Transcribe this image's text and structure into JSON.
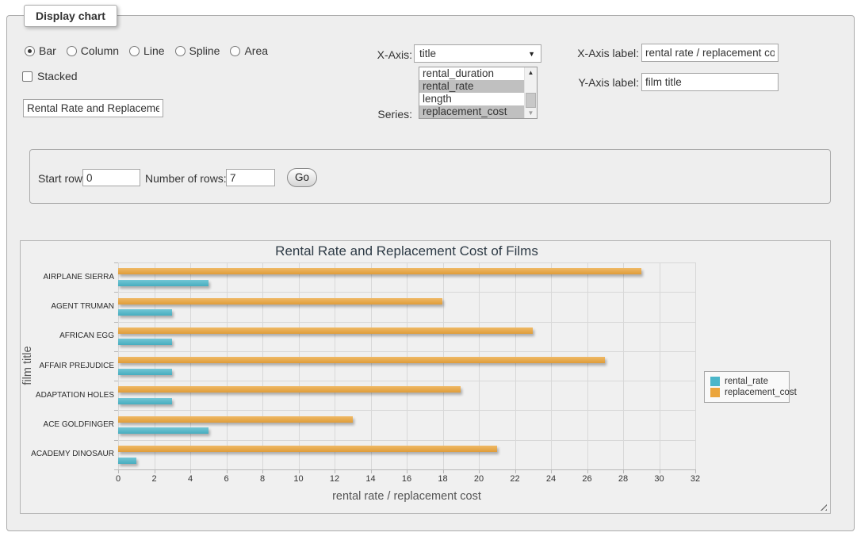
{
  "panel_title": "Display chart",
  "controls": {
    "chart_types": [
      "Bar",
      "Column",
      "Line",
      "Spline",
      "Area"
    ],
    "chart_type_selected": "Bar",
    "stacked_label": "Stacked",
    "stacked_checked": false,
    "chart_title_value": "Rental Rate and Replacement Cost of Films",
    "x_axis_label": "X-Axis:",
    "x_axis_selected": "title",
    "series_label": "Series:",
    "series_options": [
      {
        "label": "rental_duration",
        "selected": false
      },
      {
        "label": "rental_rate",
        "selected": true
      },
      {
        "label": "length",
        "selected": false
      },
      {
        "label": "replacement_cost",
        "selected": true
      }
    ],
    "x_axis_label_label": "X-Axis label:",
    "x_axis_label_value": "rental rate / replacement cost",
    "y_axis_label_label": "Y-Axis label:",
    "y_axis_label_value": "film title"
  },
  "row_form": {
    "start_row_label": "Start row:",
    "start_row_value": "0",
    "number_of_rows_label": "Number of rows:",
    "number_of_rows_value": "7",
    "go_button_label": "Go"
  },
  "icons": {
    "dropdown_arrow": "▼",
    "scroll_up_arrow": "▲",
    "scroll_down_arrow": "▼"
  },
  "colors": {
    "rental_rate": "#4bb6c9",
    "replacement_cost": "#eba53c",
    "selected_option_bg": "#c0c0c0"
  },
  "chart_data": {
    "type": "bar",
    "title": "Rental Rate and Replacement Cost of Films",
    "xlabel": "rental rate / replacement cost",
    "ylabel": "film title",
    "categories": [
      "AIRPLANE SIERRA",
      "AGENT TRUMAN",
      "AFRICAN EGG",
      "AFFAIR PREJUDICE",
      "ADAPTATION HOLES",
      "ACE GOLDFINGER",
      "ACADEMY DINOSAUR"
    ],
    "series": [
      {
        "name": "rental_rate",
        "color": "#4bb6c9",
        "values": [
          4.99,
          2.99,
          2.99,
          2.99,
          2.99,
          4.99,
          0.99
        ]
      },
      {
        "name": "replacement_cost",
        "color": "#eba53c",
        "values": [
          28.99,
          17.99,
          22.99,
          26.99,
          18.99,
          12.99,
          20.99
        ]
      }
    ],
    "series_draw_order_top_to_bottom": [
      "replacement_cost",
      "rental_rate"
    ],
    "xlim": [
      0,
      32
    ],
    "xtick_step": 2,
    "grid": true,
    "legend_position": "right"
  }
}
